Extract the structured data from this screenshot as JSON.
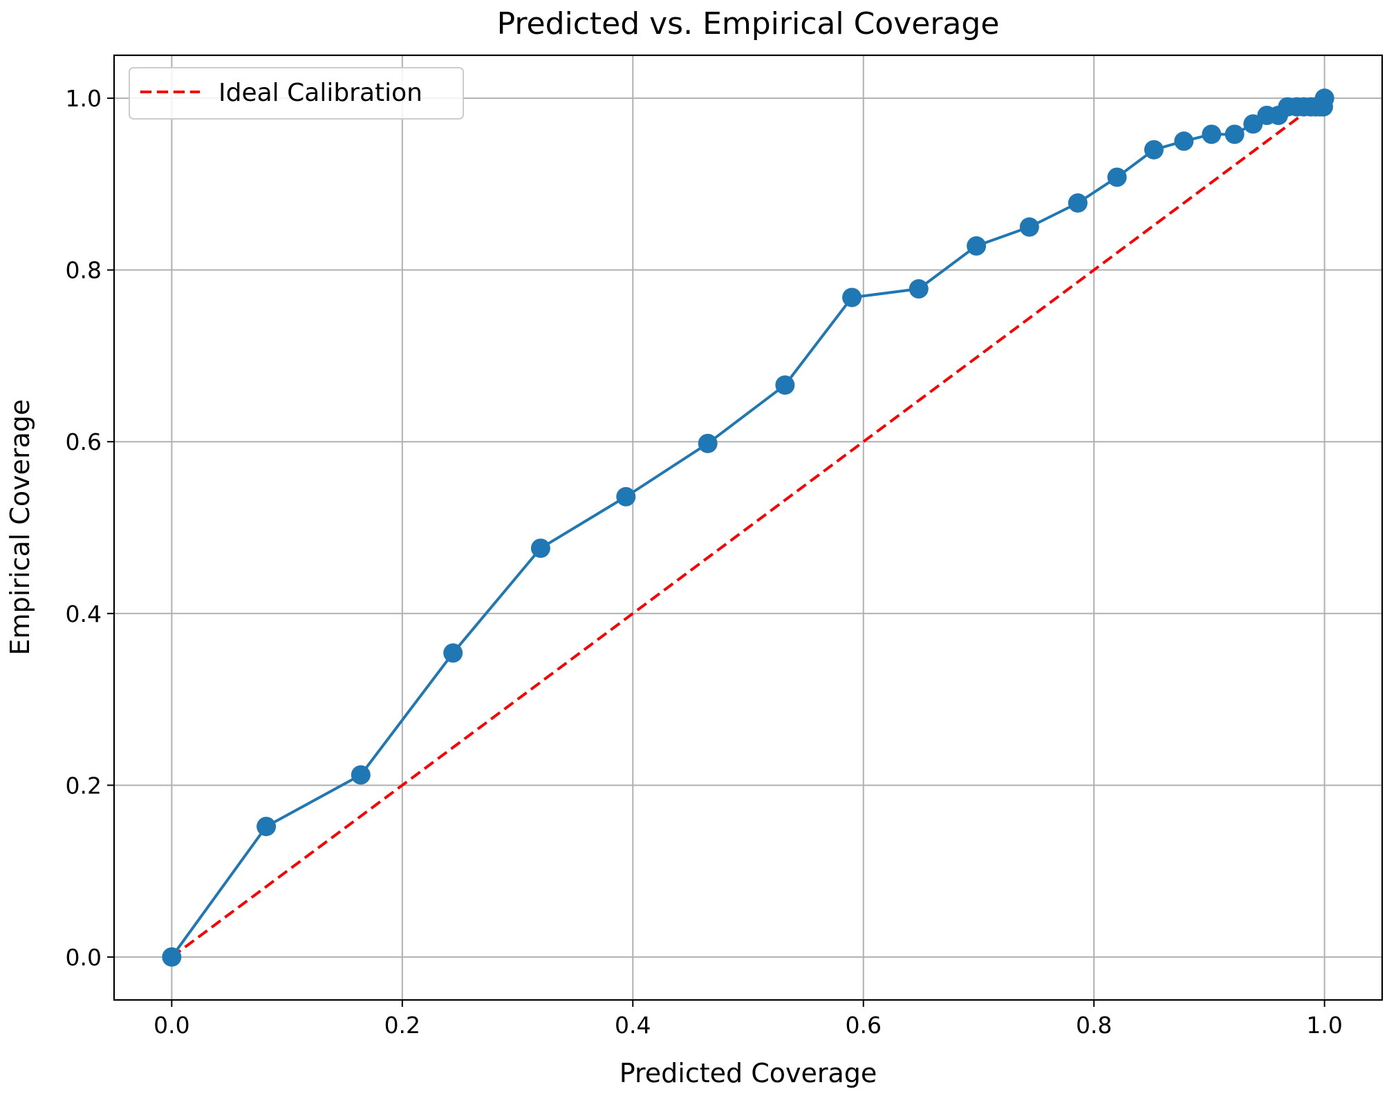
{
  "chart_data": {
    "type": "line",
    "title": "Predicted vs. Empirical Coverage",
    "xlabel": "Predicted Coverage",
    "ylabel": "Empirical Coverage",
    "xlim": [
      -0.05,
      1.05
    ],
    "ylim": [
      -0.05,
      1.05
    ],
    "xticks": [
      "0.0",
      "0.2",
      "0.4",
      "0.6",
      "0.8",
      "1.0"
    ],
    "yticks": [
      "0.0",
      "0.2",
      "0.4",
      "0.6",
      "0.8",
      "1.0"
    ],
    "grid": true,
    "legend_position": "upper-left",
    "series": [
      {
        "color": "#1f77b4",
        "style": "solid",
        "marker": "circle",
        "x": [
          0.0,
          0.082,
          0.164,
          0.244,
          0.32,
          0.394,
          0.465,
          0.532,
          0.59,
          0.648,
          0.698,
          0.744,
          0.786,
          0.82,
          0.852,
          0.878,
          0.902,
          0.922,
          0.938,
          0.95,
          0.96,
          0.968,
          0.976,
          0.982,
          0.988,
          0.992,
          0.996,
          0.999,
          1.0
        ],
        "y": [
          0.0,
          0.152,
          0.212,
          0.354,
          0.476,
          0.536,
          0.598,
          0.666,
          0.768,
          0.778,
          0.828,
          0.85,
          0.878,
          0.908,
          0.94,
          0.95,
          0.958,
          0.958,
          0.97,
          0.98,
          0.98,
          0.99,
          0.99,
          0.99,
          0.99,
          0.99,
          0.99,
          0.99,
          1.0
        ]
      },
      {
        "name": "Ideal Calibration",
        "color": "#ff0000",
        "style": "dashed",
        "x": [
          0.0,
          1.0
        ],
        "y": [
          0.0,
          1.0
        ]
      }
    ]
  }
}
